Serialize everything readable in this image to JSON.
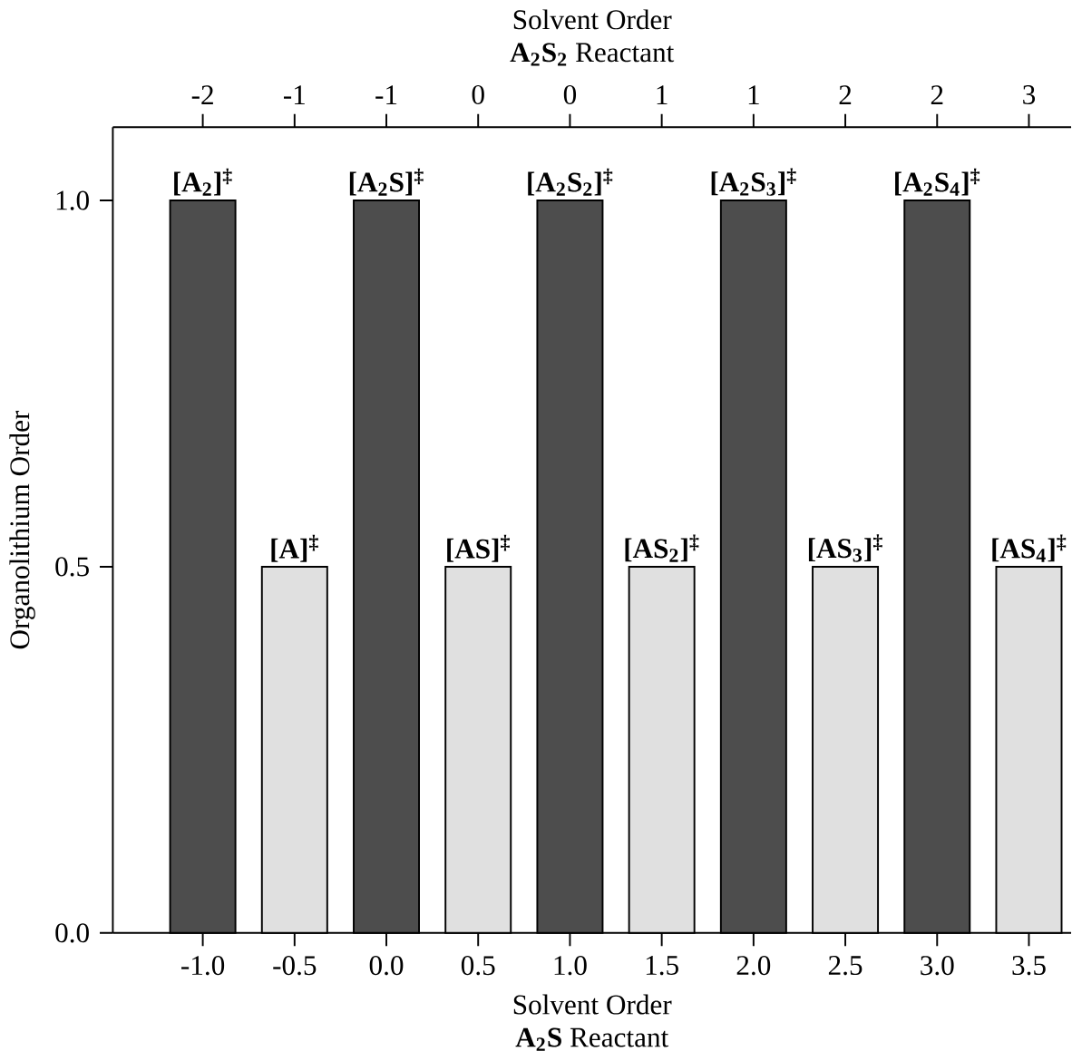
{
  "chart_data": {
    "type": "bar",
    "xlabel": "Solvent Order",
    "x2label": "Solvent Order",
    "ylabel": "Organolithium Order",
    "series": [
      {
        "color": "#4d4d4d",
        "x": [
          -1.0,
          0.0,
          1.0,
          2.0,
          3.0
        ],
        "values": [
          1.0,
          1.0,
          1.0,
          1.0,
          1.0
        ]
      },
      {
        "color": "#e0e0e0",
        "x": [
          -0.5,
          0.5,
          1.5,
          2.5,
          3.5
        ],
        "values": [
          0.5,
          0.5,
          0.5,
          0.5,
          0.5
        ]
      }
    ],
    "xlim": [
      -1.49,
      3.73
    ],
    "ylim": [
      0,
      1.1
    ],
    "xticks": [
      {
        "value": -1.0,
        "label": "-1.0"
      },
      {
        "value": -0.5,
        "label": "-0.5"
      },
      {
        "value": 0.0,
        "label": "0.0"
      },
      {
        "value": 0.5,
        "label": "0.5"
      },
      {
        "value": 1.0,
        "label": "1.0"
      },
      {
        "value": 1.5,
        "label": "1.5"
      },
      {
        "value": 2.0,
        "label": "2.0"
      },
      {
        "value": 2.5,
        "label": "2.5"
      },
      {
        "value": 3.0,
        "label": "3.0"
      },
      {
        "value": 3.5,
        "label": "3.5"
      }
    ],
    "yticks": [
      {
        "value": 0,
        "label": "0.0"
      },
      {
        "value": 0.5,
        "label": "0.5"
      },
      {
        "value": 1.0,
        "label": "1.0"
      }
    ],
    "annotations": [
      {
        "text": "[A$_{2}$]$^{‡}$",
        "x": -1.0,
        "y": 1.0
      },
      {
        "text": "[A]$^{‡}$",
        "x": -0.5,
        "y": 0.5
      },
      {
        "text": "[A$_{2}$S]$^{‡}$",
        "x": 0.0,
        "y": 1.0
      },
      {
        "text": "[AS]$^{‡}$",
        "x": 0.5,
        "y": 0.5
      },
      {
        "text": "[A$_{2}$S$_{2}$]$^{‡}$",
        "x": 1.0,
        "y": 1.0
      },
      {
        "text": "[AS$_{2}$]$^{‡}$",
        "x": 1.5,
        "y": 0.5
      },
      {
        "text": "[A$_{2}$S$_{3}$]$^{‡}$",
        "x": 2.0,
        "y": 1.0
      },
      {
        "text": "[AS$_{3}$]$^{‡}$",
        "x": 2.5,
        "y": 0.5
      },
      {
        "text": "[A$_{2}$S$_{4}$]$^{‡}$",
        "x": 3.0,
        "y": 1.0
      },
      {
        "text": "[AS$_{4}$]$^{‡}$",
        "x": 3.5,
        "y": 0.5
      },
      {
        "text": "-2",
        "x": -1.0
      },
      {
        "text": "-1",
        "x": -0.5
      },
      {
        "text": "-1",
        "x": 0.0
      },
      {
        "text": "0",
        "x": 0.5
      },
      {
        "text": "0",
        "x": 1.0
      },
      {
        "text": "1",
        "x": 1.5
      },
      {
        "text": "1",
        "x": 2.0
      },
      {
        "text": "2",
        "x": 2.5
      },
      {
        "text": "2",
        "x": 3.0
      },
      {
        "text": "3",
        "x": 3.5
      },
      "**A$_{2}$S** Reactant",
      "**A$_{2}$S$_{2}$** Reactant"
    ]
  }
}
